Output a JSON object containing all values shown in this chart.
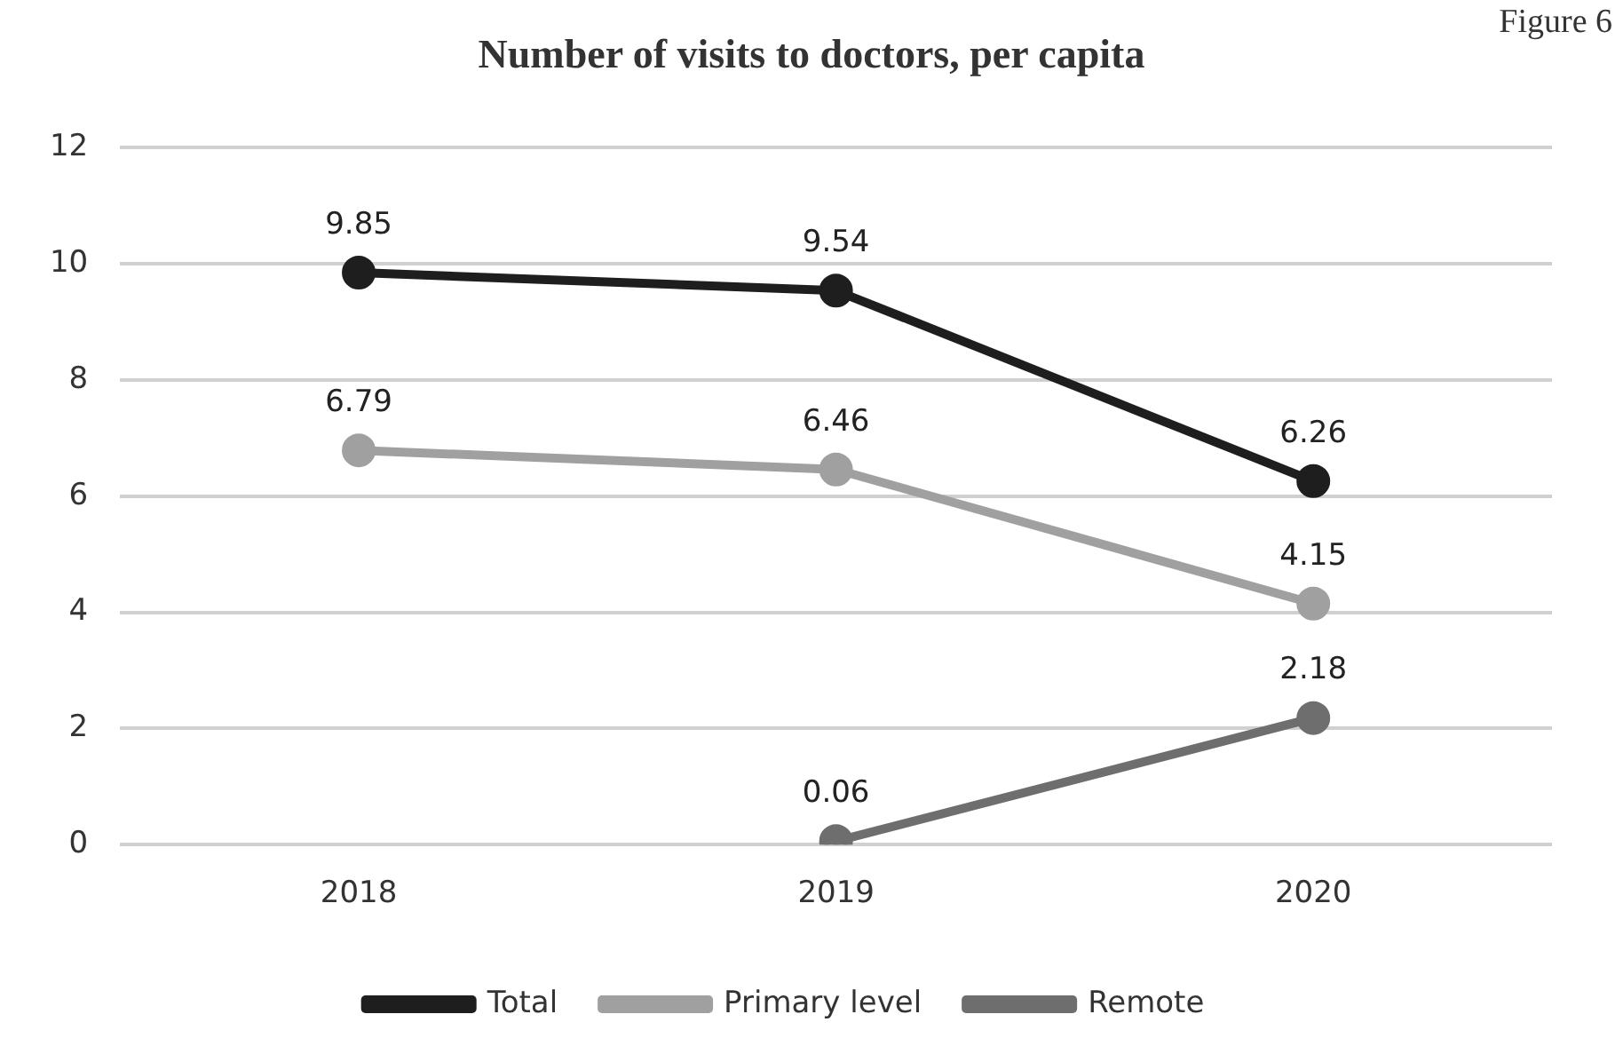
{
  "chart_data": {
    "type": "line",
    "title": "Number of visits to doctors, per capita",
    "annotations": [
      "Figure 6"
    ],
    "categories": [
      "2018",
      "2019",
      "2020"
    ],
    "series": [
      {
        "name": "Total",
        "color": "#1e1e1e",
        "values": [
          9.85,
          9.54,
          6.26
        ]
      },
      {
        "name": "Primary level",
        "color": "#a0a0a0",
        "values": [
          6.79,
          6.46,
          4.15
        ]
      },
      {
        "name": "Remote",
        "color": "#6e6e6e",
        "values": [
          null,
          0.06,
          2.18
        ]
      }
    ],
    "ylim": [
      0,
      12
    ],
    "yticks": [
      0,
      2,
      4,
      6,
      8,
      10,
      12
    ],
    "grid": "y",
    "legend": "bottom",
    "marker": "circle",
    "line_style": "solid",
    "data_labels": true
  }
}
